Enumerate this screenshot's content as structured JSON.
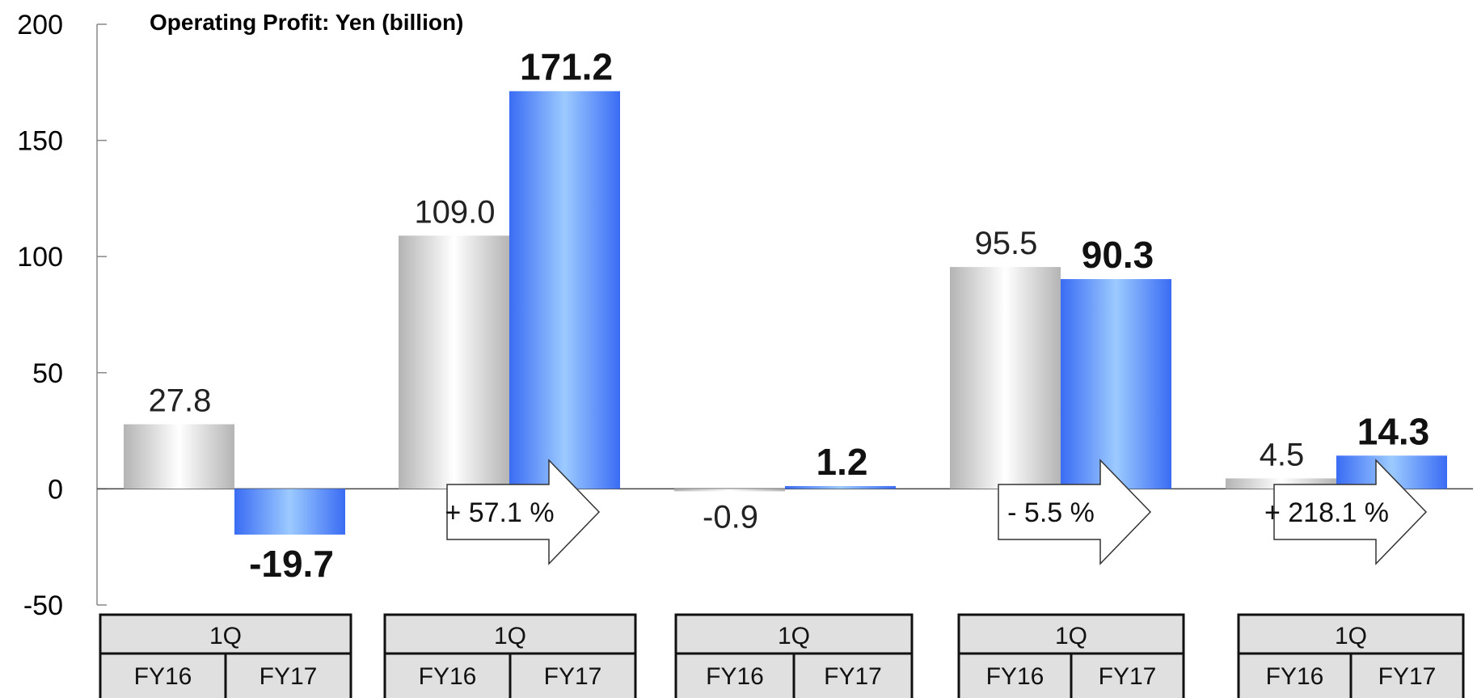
{
  "chart_data": {
    "type": "bar",
    "title": "Operating Profit: Yen (billion)",
    "xlabel": "",
    "ylabel": "",
    "ylim": [
      -50,
      200
    ],
    "yticks": [
      200,
      150,
      100,
      50,
      0,
      -50
    ],
    "categories": [
      "1Q",
      "1Q",
      "1Q",
      "1Q",
      "1Q"
    ],
    "series": [
      {
        "name": "FY16",
        "values": [
          27.8,
          109.0,
          -0.9,
          95.5,
          4.5
        ],
        "labels": [
          "27.8",
          "109.0",
          "-0.9",
          "95.5",
          "4.5"
        ]
      },
      {
        "name": "FY17",
        "values": [
          -19.7,
          171.2,
          1.2,
          90.3,
          14.3
        ],
        "labels": [
          "-19.7",
          "171.2",
          "1.2",
          "90.3",
          "14.3"
        ]
      }
    ],
    "growth": [
      "",
      "+ 57.1 %",
      "",
      "- 5.5 %",
      "+ 218.1 %"
    ],
    "colors": {
      "fy16_dark": "#b4b4b4",
      "fy16_light": "#ffffff",
      "fy17_dark": "#3a6cf4",
      "fy17_light": "#9ccaff",
      "table_fill": "#e0e0e0"
    },
    "grid": false
  }
}
